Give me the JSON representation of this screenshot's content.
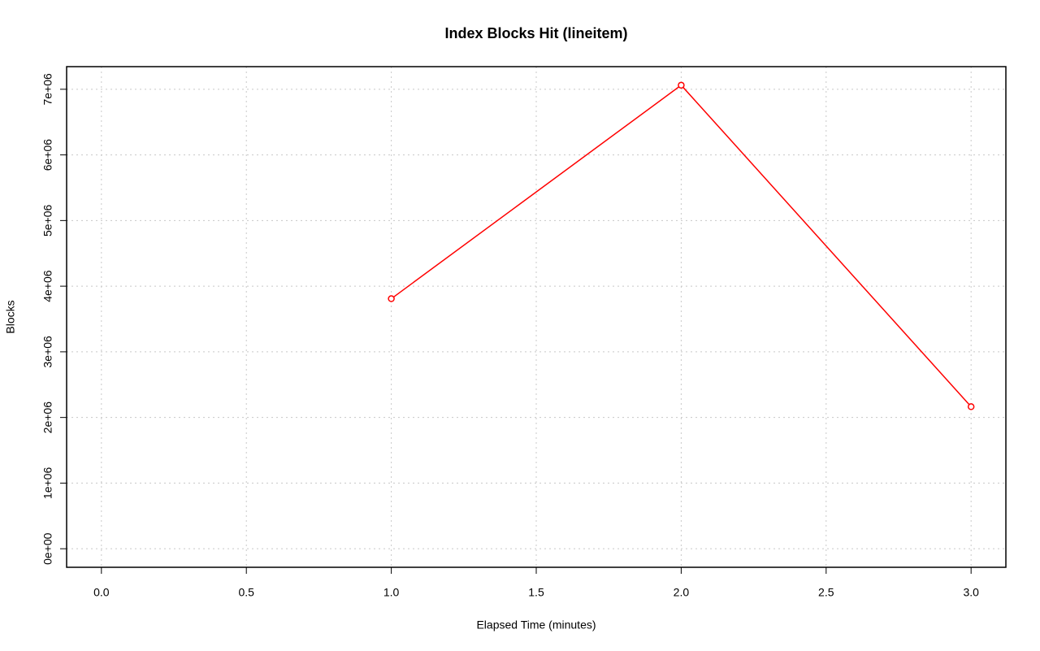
{
  "chart_data": {
    "type": "line",
    "title": "Index Blocks Hit (lineitem)",
    "x_label": "Elapsed Time (minutes)",
    "y_label": "Blocks",
    "x": [
      1,
      2,
      3
    ],
    "series": [
      {
        "name": "Blocks",
        "color": "#ff0000",
        "values": [
          3809000,
          7062000,
          2164000
        ]
      }
    ],
    "xlim": [
      -0.12,
      3.12
    ],
    "xticks": [
      {
        "value": 0,
        "label": "0.0"
      },
      0.5,
      {
        "value": 1,
        "label": "1.0"
      },
      1.5,
      {
        "value": 2,
        "label": "2.0"
      },
      2.5,
      {
        "value": 3,
        "label": "3.0"
      }
    ],
    "ylim": [
      -282500,
      7344500
    ],
    "yticks": [
      {
        "value": 0,
        "label": "0e+00"
      },
      {
        "value": 1000000,
        "label": "1e+06"
      },
      {
        "value": 2000000,
        "label": "2e+06"
      },
      {
        "value": 3000000,
        "label": "3e+06"
      },
      {
        "value": 4000000,
        "label": "4e+06"
      },
      {
        "value": 5000000,
        "label": "5e+06"
      },
      {
        "value": 6000000,
        "label": "6e+06"
      },
      {
        "value": 7000000,
        "label": "7e+06"
      }
    ],
    "grid": true
  }
}
